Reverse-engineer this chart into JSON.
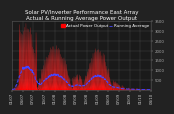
{
  "title": "Solar PV/Inverter Performance East Array",
  "subtitle": "Actual & Running Average Power Output",
  "bg_color": "#222222",
  "plot_bg_color": "#1a1a1a",
  "grid_color": "#555555",
  "area_color": "#ff0000",
  "area_edge_color": "#ff2222",
  "avg_color": "#4444ff",
  "avg_style": "--",
  "ylim": [
    0,
    3500
  ],
  "yticks": [
    500,
    1000,
    1500,
    2000,
    2500,
    3000,
    3500
  ],
  "n_points": 500,
  "title_fontsize": 4.0,
  "tick_fontsize": 2.8,
  "legend_fontsize": 3.0
}
